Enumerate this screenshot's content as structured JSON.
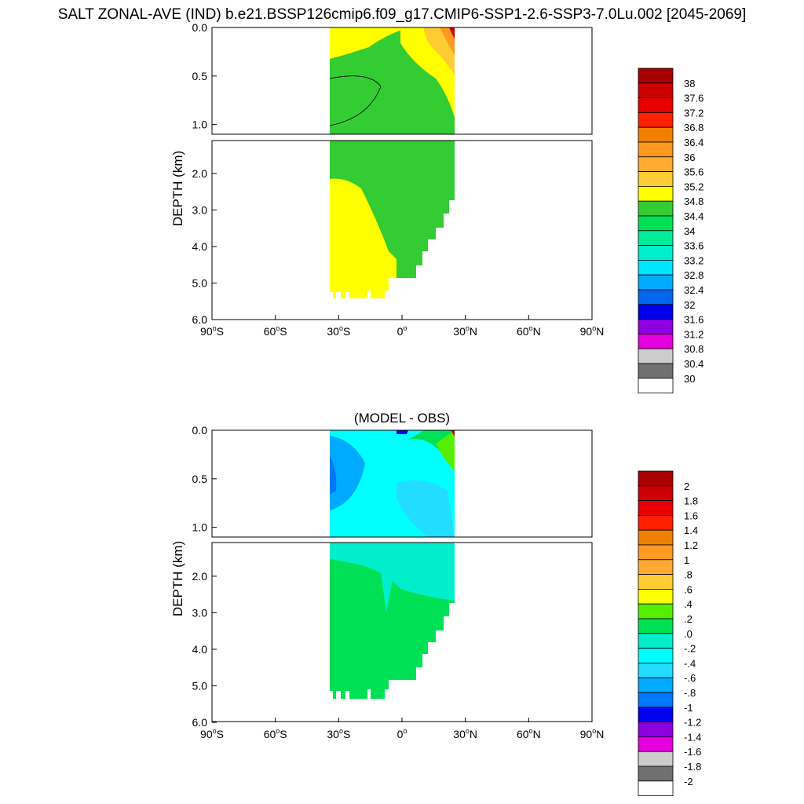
{
  "title": "SALT ZONAL-AVE (IND) b.e21.BSSP126cmip6.f09_g17.CMIP6-SSP1-2.6-SSP3-7.0Lu.002 [2045-2069]",
  "chart_data": [
    {
      "type": "heatmap",
      "title": "",
      "ylabel": "DEPTH (km)",
      "xlabel": "",
      "x_ticks": [
        "90°S",
        "60°S",
        "30°S",
        "0°",
        "30°N",
        "60°N",
        "90°N"
      ],
      "y_ticks_upper": [
        "0.0",
        "0.5",
        "1.0"
      ],
      "y_ticks_lower": [
        "2.0",
        "3.0",
        "4.0",
        "5.0",
        "6.0"
      ],
      "xlim": [
        -90,
        90
      ],
      "ylim_km": [
        6.0,
        0.0
      ],
      "data_lat_range": [
        -34,
        25
      ],
      "colorbar_labels": [
        "38",
        "37.6",
        "37.2",
        "36.8",
        "36.4",
        "36",
        "35.6",
        "35.2",
        "34.8",
        "34.4",
        "34",
        "33.6",
        "33.2",
        "32.8",
        "32.4",
        "32",
        "31.6",
        "31.2",
        "30.8",
        "30.4",
        "30"
      ],
      "colorbar_colors": [
        "#a80000",
        "#cc0000",
        "#e60000",
        "#ff2000",
        "#f08000",
        "#ff9920",
        "#ffaa33",
        "#ffcc33",
        "#ffff00",
        "#33cc33",
        "#00e055",
        "#00ee99",
        "#00eecc",
        "#00e6ff",
        "#00aaff",
        "#0066ee",
        "#0000ee",
        "#8f00e0",
        "#e600e0",
        "#cccccc",
        "#707070",
        "#ffffff"
      ],
      "fill_colors": {
        "main_upper": "#33cc33",
        "main_deep": "#ffff00",
        "high": "#ffcc33",
        "peak": "#cc0000"
      }
    },
    {
      "type": "heatmap",
      "title": "(MODEL - OBS)",
      "ylabel": "DEPTH (km)",
      "xlabel": "",
      "x_ticks": [
        "90°S",
        "60°S",
        "30°S",
        "0°",
        "30°N",
        "60°N",
        "90°N"
      ],
      "y_ticks_upper": [
        "0.0",
        "0.5",
        "1.0"
      ],
      "y_ticks_lower": [
        "2.0",
        "3.0",
        "4.0",
        "5.0",
        "6.0"
      ],
      "xlim": [
        -90,
        90
      ],
      "ylim_km": [
        6.0,
        0.0
      ],
      "data_lat_range": [
        -34,
        25
      ],
      "colorbar_labels": [
        "2",
        "1.8",
        "1.6",
        "1.4",
        "1.2",
        "1",
        ".8",
        ".6",
        ".4",
        ".2",
        ".0",
        "-.2",
        "-.4",
        "-.6",
        "-.8",
        "-1",
        "-1.2",
        "-1.4",
        "-1.6",
        "-1.8",
        "-2"
      ],
      "colorbar_colors": [
        "#a80000",
        "#cc0000",
        "#e60000",
        "#ff2000",
        "#f08000",
        "#ff9920",
        "#ffaa33",
        "#ffcc33",
        "#ffff00",
        "#55ee00",
        "#00e055",
        "#00eecc",
        "#00ffff",
        "#22ddff",
        "#00aaff",
        "#0077ff",
        "#0000ee",
        "#8f00e0",
        "#e600e0",
        "#cccccc",
        "#707070",
        "#ffffff"
      ],
      "fill_colors": {
        "main_upper": "#00ffff",
        "main_deep": "#00e055",
        "neg": "#00aaff",
        "mid": "#22ddff",
        "pos": "#55ee00"
      }
    }
  ]
}
